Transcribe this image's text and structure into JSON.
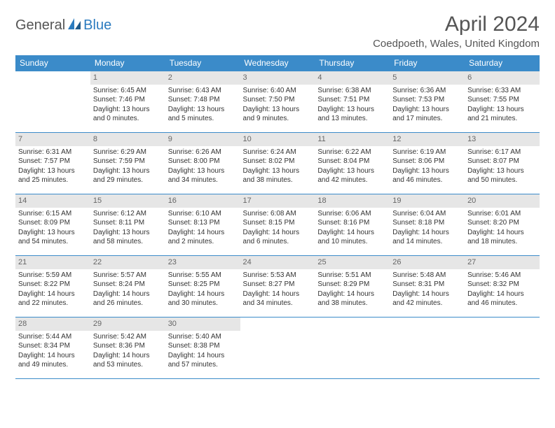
{
  "logo": {
    "word1": "General",
    "word2": "Blue"
  },
  "title": "April 2024",
  "location": "Coedpoeth, Wales, United Kingdom",
  "colors": {
    "header_bg": "#3b8bc9",
    "header_text": "#ffffff",
    "border": "#3b8bc9",
    "daynum_bg": "#e6e6e6",
    "logo_blue": "#2b7bbf",
    "text": "#333333"
  },
  "weekdays": [
    "Sunday",
    "Monday",
    "Tuesday",
    "Wednesday",
    "Thursday",
    "Friday",
    "Saturday"
  ],
  "calendar": {
    "type": "table",
    "start_weekday": 1,
    "days_in_month": 30,
    "cells": [
      null,
      {
        "n": 1,
        "sr": "6:45 AM",
        "ss": "7:46 PM",
        "dl": "13 hours and 0 minutes."
      },
      {
        "n": 2,
        "sr": "6:43 AM",
        "ss": "7:48 PM",
        "dl": "13 hours and 5 minutes."
      },
      {
        "n": 3,
        "sr": "6:40 AM",
        "ss": "7:50 PM",
        "dl": "13 hours and 9 minutes."
      },
      {
        "n": 4,
        "sr": "6:38 AM",
        "ss": "7:51 PM",
        "dl": "13 hours and 13 minutes."
      },
      {
        "n": 5,
        "sr": "6:36 AM",
        "ss": "7:53 PM",
        "dl": "13 hours and 17 minutes."
      },
      {
        "n": 6,
        "sr": "6:33 AM",
        "ss": "7:55 PM",
        "dl": "13 hours and 21 minutes."
      },
      {
        "n": 7,
        "sr": "6:31 AM",
        "ss": "7:57 PM",
        "dl": "13 hours and 25 minutes."
      },
      {
        "n": 8,
        "sr": "6:29 AM",
        "ss": "7:59 PM",
        "dl": "13 hours and 29 minutes."
      },
      {
        "n": 9,
        "sr": "6:26 AM",
        "ss": "8:00 PM",
        "dl": "13 hours and 34 minutes."
      },
      {
        "n": 10,
        "sr": "6:24 AM",
        "ss": "8:02 PM",
        "dl": "13 hours and 38 minutes."
      },
      {
        "n": 11,
        "sr": "6:22 AM",
        "ss": "8:04 PM",
        "dl": "13 hours and 42 minutes."
      },
      {
        "n": 12,
        "sr": "6:19 AM",
        "ss": "8:06 PM",
        "dl": "13 hours and 46 minutes."
      },
      {
        "n": 13,
        "sr": "6:17 AM",
        "ss": "8:07 PM",
        "dl": "13 hours and 50 minutes."
      },
      {
        "n": 14,
        "sr": "6:15 AM",
        "ss": "8:09 PM",
        "dl": "13 hours and 54 minutes."
      },
      {
        "n": 15,
        "sr": "6:12 AM",
        "ss": "8:11 PM",
        "dl": "13 hours and 58 minutes."
      },
      {
        "n": 16,
        "sr": "6:10 AM",
        "ss": "8:13 PM",
        "dl": "14 hours and 2 minutes."
      },
      {
        "n": 17,
        "sr": "6:08 AM",
        "ss": "8:15 PM",
        "dl": "14 hours and 6 minutes."
      },
      {
        "n": 18,
        "sr": "6:06 AM",
        "ss": "8:16 PM",
        "dl": "14 hours and 10 minutes."
      },
      {
        "n": 19,
        "sr": "6:04 AM",
        "ss": "8:18 PM",
        "dl": "14 hours and 14 minutes."
      },
      {
        "n": 20,
        "sr": "6:01 AM",
        "ss": "8:20 PM",
        "dl": "14 hours and 18 minutes."
      },
      {
        "n": 21,
        "sr": "5:59 AM",
        "ss": "8:22 PM",
        "dl": "14 hours and 22 minutes."
      },
      {
        "n": 22,
        "sr": "5:57 AM",
        "ss": "8:24 PM",
        "dl": "14 hours and 26 minutes."
      },
      {
        "n": 23,
        "sr": "5:55 AM",
        "ss": "8:25 PM",
        "dl": "14 hours and 30 minutes."
      },
      {
        "n": 24,
        "sr": "5:53 AM",
        "ss": "8:27 PM",
        "dl": "14 hours and 34 minutes."
      },
      {
        "n": 25,
        "sr": "5:51 AM",
        "ss": "8:29 PM",
        "dl": "14 hours and 38 minutes."
      },
      {
        "n": 26,
        "sr": "5:48 AM",
        "ss": "8:31 PM",
        "dl": "14 hours and 42 minutes."
      },
      {
        "n": 27,
        "sr": "5:46 AM",
        "ss": "8:32 PM",
        "dl": "14 hours and 46 minutes."
      },
      {
        "n": 28,
        "sr": "5:44 AM",
        "ss": "8:34 PM",
        "dl": "14 hours and 49 minutes."
      },
      {
        "n": 29,
        "sr": "5:42 AM",
        "ss": "8:36 PM",
        "dl": "14 hours and 53 minutes."
      },
      {
        "n": 30,
        "sr": "5:40 AM",
        "ss": "8:38 PM",
        "dl": "14 hours and 57 minutes."
      },
      null,
      null,
      null,
      null
    ]
  },
  "labels": {
    "sunrise_prefix": "Sunrise: ",
    "sunset_prefix": "Sunset: ",
    "daylight_prefix": "Daylight: "
  }
}
